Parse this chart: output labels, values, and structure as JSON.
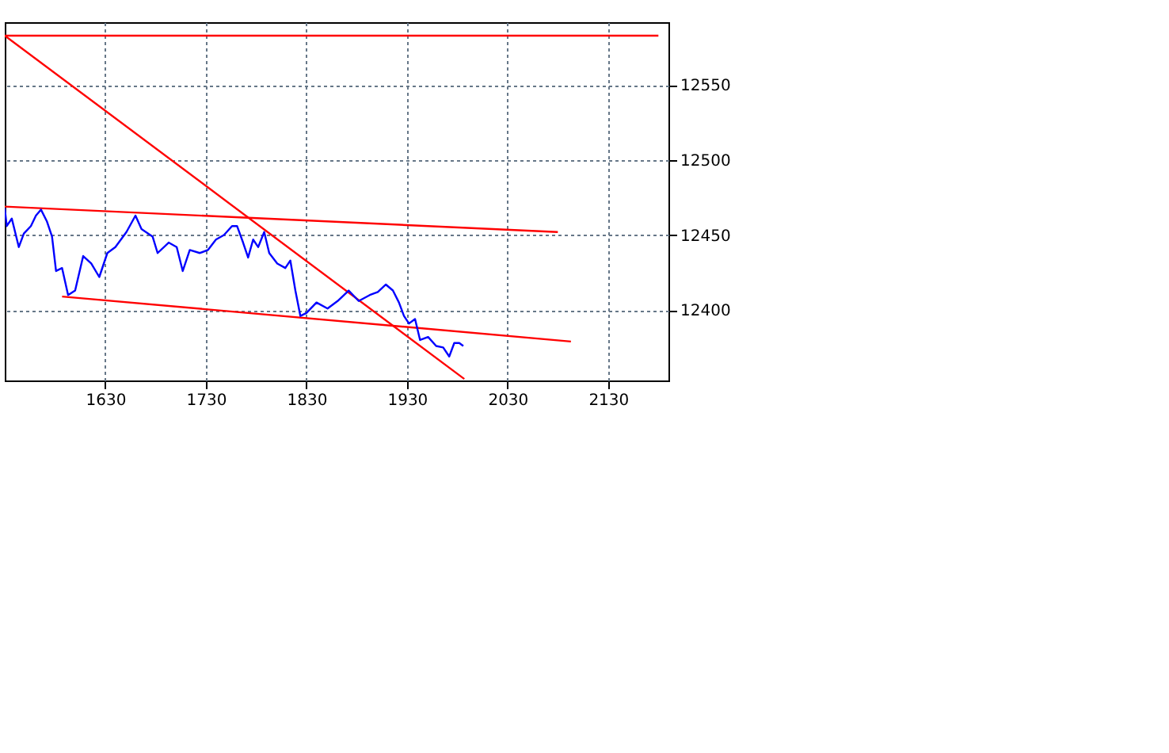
{
  "chart_data": {
    "type": "line",
    "xlim": [
      1530,
      2190
    ],
    "ylim": [
      12353,
      12592
    ],
    "xticks": [
      1630,
      1730,
      1830,
      1930,
      2030,
      2130
    ],
    "yticks": [
      12400,
      12450,
      12500,
      12550
    ],
    "grid": true,
    "series": [
      {
        "color": "#ff0000",
        "x": [
          1530,
          2180
        ],
        "values": [
          12583,
          12583
        ]
      },
      {
        "color": "#ff0000",
        "x": [
          1530,
          1987
        ],
        "values": [
          12583,
          12354
        ]
      },
      {
        "color": "#ff0000",
        "x": [
          1530,
          2080
        ],
        "values": [
          12469,
          12452
        ]
      },
      {
        "color": "#ff0000",
        "x": [
          1587,
          2093
        ],
        "values": [
          12409,
          12379
        ]
      },
      {
        "color": "#0000ff",
        "x": [
          1530,
          1532,
          1537,
          1544,
          1549,
          1556,
          1561,
          1566,
          1572,
          1577,
          1581,
          1587,
          1593,
          1600,
          1608,
          1616,
          1624,
          1632,
          1640,
          1651,
          1660,
          1666,
          1677,
          1682,
          1693,
          1701,
          1707,
          1714,
          1724,
          1732,
          1740,
          1748,
          1756,
          1761,
          1767,
          1772,
          1777,
          1782,
          1788,
          1793,
          1801,
          1809,
          1814,
          1819,
          1824,
          1830,
          1840,
          1851,
          1861,
          1872,
          1882,
          1893,
          1901,
          1909,
          1916,
          1922,
          1927,
          1932,
          1938,
          1943,
          1951,
          1959,
          1966,
          1972,
          1977,
          1982,
          1986
        ],
        "values": [
          12468,
          12456,
          12461,
          12442,
          12451,
          12456,
          12463,
          12467,
          12459,
          12449,
          12426,
          12428,
          12410,
          12413,
          12436,
          12431,
          12422,
          12438,
          12442,
          12452,
          12463,
          12454,
          12449,
          12438,
          12445,
          12442,
          12426,
          12440,
          12438,
          12440,
          12447,
          12450,
          12456,
          12456,
          12445,
          12435,
          12447,
          12442,
          12452,
          12438,
          12431,
          12428,
          12433,
          12413,
          12396,
          12398,
          12405,
          12401,
          12406,
          12413,
          12406,
          12410,
          12412,
          12417,
          12413,
          12405,
          12396,
          12391,
          12394,
          12380,
          12382,
          12376,
          12375,
          12369,
          12378,
          12378,
          12376
        ]
      }
    ]
  }
}
